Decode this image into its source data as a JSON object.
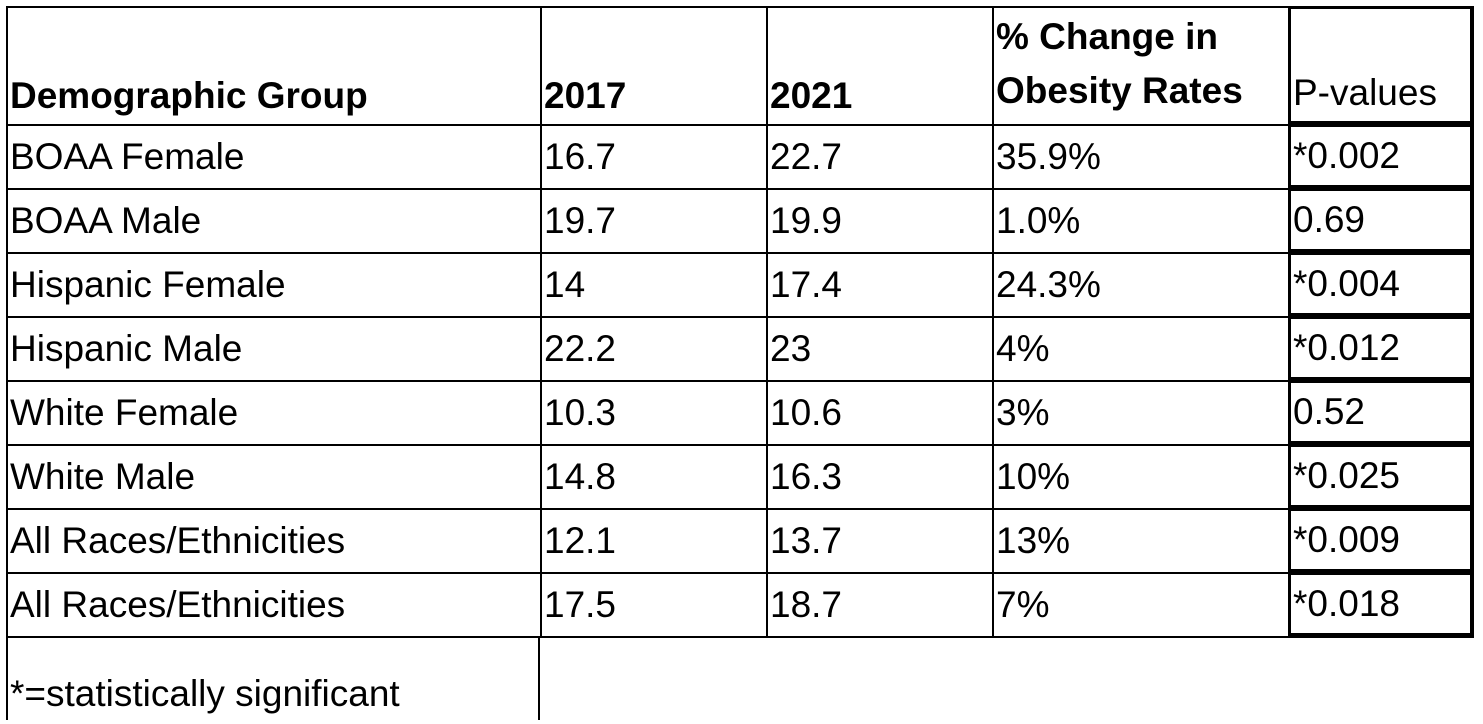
{
  "table": {
    "headers": {
      "group": "Demographic Group",
      "y2017": "2017",
      "y2021": "2021",
      "change": "% Change in Obesity Rates",
      "pvalue": "P-values"
    },
    "rows": [
      {
        "group": "BOAA Female",
        "y2017": "16.7",
        "y2021": "22.7",
        "change": "35.9%",
        "pvalue": "*0.002"
      },
      {
        "group": "BOAA Male",
        "y2017": "19.7",
        "y2021": "19.9",
        "change": "1.0%",
        "pvalue": "0.69"
      },
      {
        "group": "Hispanic Female",
        "y2017": "14",
        "y2021": "17.4",
        "change": "24.3%",
        "pvalue": "*0.004"
      },
      {
        "group": "Hispanic Male",
        "y2017": "22.2",
        "y2021": "23",
        "change": "4%",
        "pvalue": "*0.012"
      },
      {
        "group": "White Female",
        "y2017": "10.3",
        "y2021": "10.6",
        "change": "3%",
        "pvalue": "0.52"
      },
      {
        "group": "White Male",
        "y2017": "14.8",
        "y2021": "16.3",
        "change": "10%",
        "pvalue": "*0.025"
      },
      {
        "group": "All Races/Ethnicities",
        "y2017": "12.1",
        "y2021": "13.7",
        "change": "13%",
        "pvalue": "*0.009"
      },
      {
        "group": "All Races/Ethnicities",
        "y2017": "17.5",
        "y2021": "18.7",
        "change": "7%",
        "pvalue": "*0.018"
      }
    ],
    "footnote": "*=statistically significant"
  }
}
